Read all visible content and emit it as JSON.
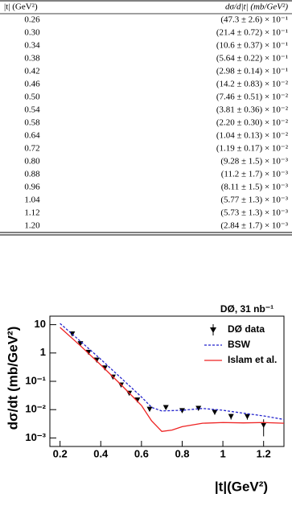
{
  "table": {
    "header": [
      "|t| (GeV²)",
      "dσ/d|t| (mb/GeV²)"
    ],
    "rows": [
      [
        "0.26",
        "(47.3 ± 2.6) × 10⁻¹"
      ],
      [
        "0.30",
        "(21.4 ± 0.72) × 10⁻¹"
      ],
      [
        "0.34",
        "(10.6 ± 0.37) × 10⁻¹"
      ],
      [
        "0.38",
        "(5.64 ± 0.22) × 10⁻¹"
      ],
      [
        "0.42",
        "(2.98 ± 0.14) × 10⁻¹"
      ],
      [
        "0.46",
        "(14.2 ± 0.83) × 10⁻²"
      ],
      [
        "0.50",
        "(7.46 ± 0.51) × 10⁻²"
      ],
      [
        "0.54",
        "(3.81 ± 0.36) × 10⁻²"
      ],
      [
        "0.58",
        "(2.20 ± 0.30) × 10⁻²"
      ],
      [
        "0.64",
        "(1.04 ± 0.13) × 10⁻²"
      ],
      [
        "0.72",
        "(1.19 ± 0.17) × 10⁻²"
      ],
      [
        "0.80",
        "(9.28 ± 1.5) × 10⁻³"
      ],
      [
        "0.88",
        "(11.2 ± 1.7) × 10⁻³"
      ],
      [
        "0.96",
        "(8.11 ± 1.5) × 10⁻³"
      ],
      [
        "1.04",
        "(5.77 ± 1.3) × 10⁻³"
      ],
      [
        "1.12",
        "(5.73 ± 1.3) × 10⁻³"
      ],
      [
        "1.20",
        "(2.84 ± 1.7) × 10⁻³"
      ]
    ]
  },
  "chart_data": {
    "type": "scatter",
    "annotation": "DØ, 31 nb⁻¹",
    "x_label": "|t|(GeV²)",
    "y_label": "dσ/dt (mb/GeV²)",
    "xlim": [
      0.15,
      1.3
    ],
    "xticks": [
      0.2,
      0.4,
      0.6,
      0.8,
      1,
      1.2
    ],
    "ylim": [
      0.0005,
      20
    ],
    "log_y": true,
    "yticks": [
      10,
      1,
      {
        "value": 0.1,
        "label": "10⁻¹"
      },
      {
        "value": 0.01,
        "label": "10⁻²"
      },
      {
        "value": 0.001,
        "label": "10⁻³"
      }
    ],
    "series": [
      {
        "name": "DØ data",
        "type": "scatter",
        "color": "#000000",
        "x": [
          0.26,
          0.3,
          0.34,
          0.38,
          0.42,
          0.46,
          0.5,
          0.54,
          0.58,
          0.64,
          0.72,
          0.8,
          0.88,
          0.96,
          1.04,
          1.12,
          1.2
        ],
        "values": [
          4.73,
          2.14,
          1.06,
          0.564,
          0.298,
          0.142,
          0.0746,
          0.0381,
          0.022,
          0.0104,
          0.0119,
          0.00928,
          0.0112,
          0.00811,
          0.00577,
          0.00573,
          0.00284
        ],
        "errors": [
          0.26,
          0.072,
          0.037,
          0.022,
          0.014,
          0.0083,
          0.0051,
          0.0036,
          0.003,
          0.0013,
          0.0017,
          0.0015,
          0.0017,
          0.0015,
          0.0013,
          0.0013,
          0.0017
        ]
      },
      {
        "name": "BSW",
        "type": "line",
        "color": "#2222cc",
        "dashed": true,
        "x": [
          0.2,
          0.3,
          0.4,
          0.5,
          0.6,
          0.65,
          0.7,
          0.8,
          0.9,
          1.0,
          1.1,
          1.2,
          1.3
        ],
        "values": [
          11,
          2.6,
          0.6,
          0.13,
          0.028,
          0.012,
          0.009,
          0.0095,
          0.011,
          0.0095,
          0.0075,
          0.006,
          0.0045
        ]
      },
      {
        "name": "Islam et al.",
        "type": "line",
        "color": "#ee2222",
        "dashed": false,
        "x": [
          0.2,
          0.3,
          0.4,
          0.5,
          0.6,
          0.65,
          0.7,
          0.75,
          0.8,
          0.9,
          1.0,
          1.1,
          1.2,
          1.3
        ],
        "values": [
          8,
          1.8,
          0.38,
          0.075,
          0.014,
          0.004,
          0.0017,
          0.0019,
          0.0025,
          0.0033,
          0.0035,
          0.0034,
          0.0035,
          0.0033
        ]
      }
    ]
  }
}
